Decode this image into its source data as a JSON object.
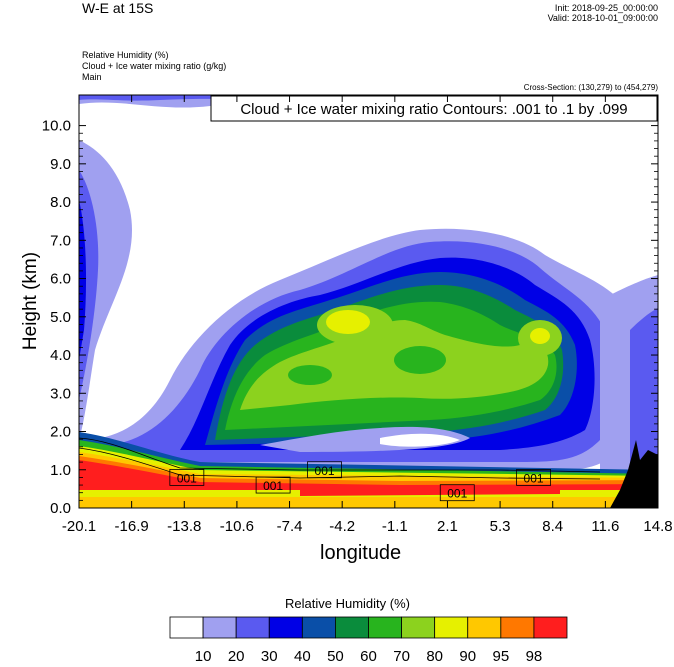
{
  "header": {
    "title": "W-E at 15S",
    "init": "Init: 2018-09-25_00:00:00",
    "valid": "Valid: 2018-10-01_09:00:00",
    "var_lines": [
      "Relative Humidity   (%)",
      "Cloud + Ice water mixing ratio   (g/kg)",
      "Main"
    ],
    "cross_section": "Cross-Section: (130,279) to (454,279)"
  },
  "chart_data": {
    "type": "heatmap",
    "title": "Cloud + Ice water mixing ratio Contours: .001 to .1 by .099",
    "xlabel": "longitude",
    "ylabel": "Height (km)",
    "x_ticks": [
      "-20.1",
      "-16.9",
      "-13.8",
      "-10.6",
      "-7.4",
      "-4.2",
      "-1.1",
      "2.1",
      "5.3",
      "8.4",
      "11.6",
      "14.8"
    ],
    "y_ticks": [
      "0.0",
      "1.0",
      "2.0",
      "3.0",
      "4.0",
      "5.0",
      "6.0",
      "7.0",
      "8.0",
      "9.0",
      "10.0"
    ],
    "xlim": [
      -20.1,
      14.8
    ],
    "ylim": [
      0.0,
      10.8
    ],
    "contour_labels": [
      {
        "text": "001",
        "x": -13.6,
        "y": 0.8
      },
      {
        "text": "001",
        "x": -8.4,
        "y": 0.6
      },
      {
        "text": "001",
        "x": -5.3,
        "y": 1.0
      },
      {
        "text": "001",
        "x": 2.7,
        "y": 0.4
      },
      {
        "text": "001",
        "x": 7.3,
        "y": 0.8
      }
    ],
    "colorbar": {
      "title": "Relative Humidity  (%)",
      "levels": [
        "10",
        "20",
        "30",
        "40",
        "50",
        "60",
        "70",
        "80",
        "90",
        "95",
        "98"
      ],
      "colors": [
        "#ffffff",
        "#a0a0f0",
        "#5a5af0",
        "#0000e6",
        "#0a4fa8",
        "#0a8c3c",
        "#28b41e",
        "#8cd21e",
        "#e6f000",
        "#ffc800",
        "#ff7800",
        "#ff1e1e"
      ]
    }
  }
}
